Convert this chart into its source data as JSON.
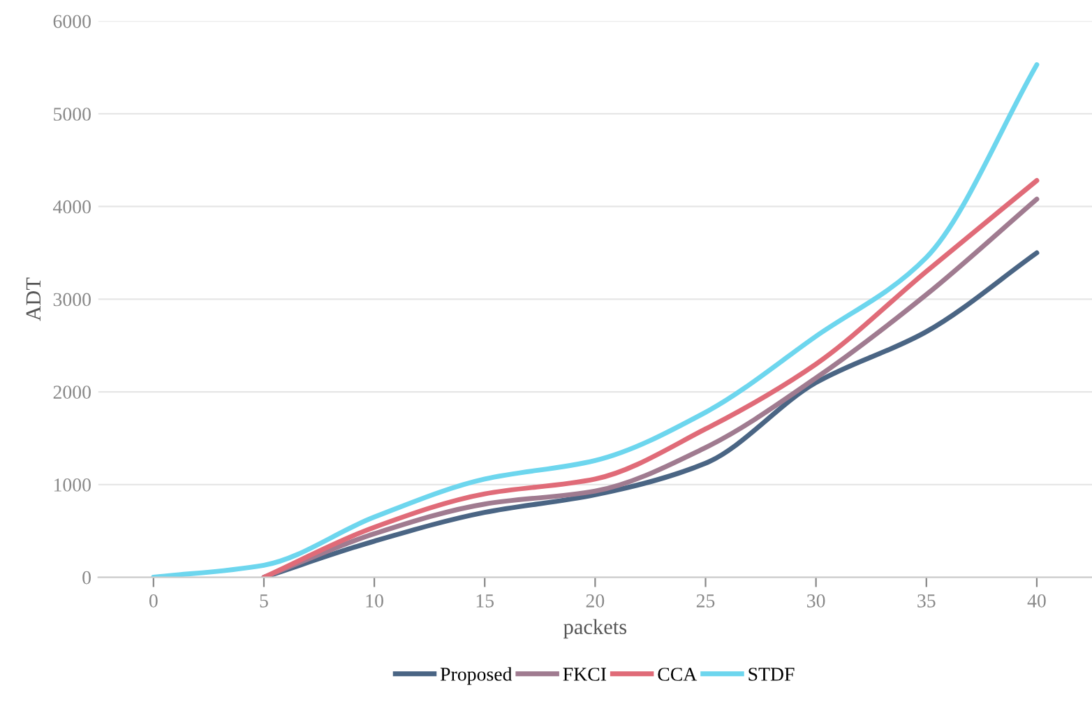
{
  "chart_data": {
    "type": "line",
    "xlabel": "packets",
    "ylabel": "ADT",
    "categories": [
      "0",
      "5",
      "10",
      "15",
      "20",
      "25",
      "30",
      "35",
      "40"
    ],
    "series": [
      {
        "name": "Proposed",
        "color": "#4a6584",
        "values": [
          null,
          0,
          390,
          700,
          890,
          1230,
          2100,
          2650,
          3500
        ]
      },
      {
        "name": "FKCI",
        "color": "#a07b90",
        "values": [
          null,
          0,
          470,
          790,
          930,
          1400,
          2150,
          3050,
          4080
        ]
      },
      {
        "name": "CCA",
        "color": "#e06b78",
        "values": [
          null,
          0,
          540,
          900,
          1060,
          1600,
          2300,
          3300,
          4280
        ]
      },
      {
        "name": "STDF",
        "color": "#6dd6ee",
        "values": [
          0,
          130,
          650,
          1060,
          1260,
          1780,
          2600,
          3450,
          5530
        ]
      }
    ],
    "ylim": [
      0,
      6000
    ],
    "yticks": [
      0,
      1000,
      2000,
      3000,
      4000,
      5000,
      6000
    ],
    "grid": "y",
    "legend": "bottom",
    "marker": "none",
    "line_style": "solid"
  }
}
